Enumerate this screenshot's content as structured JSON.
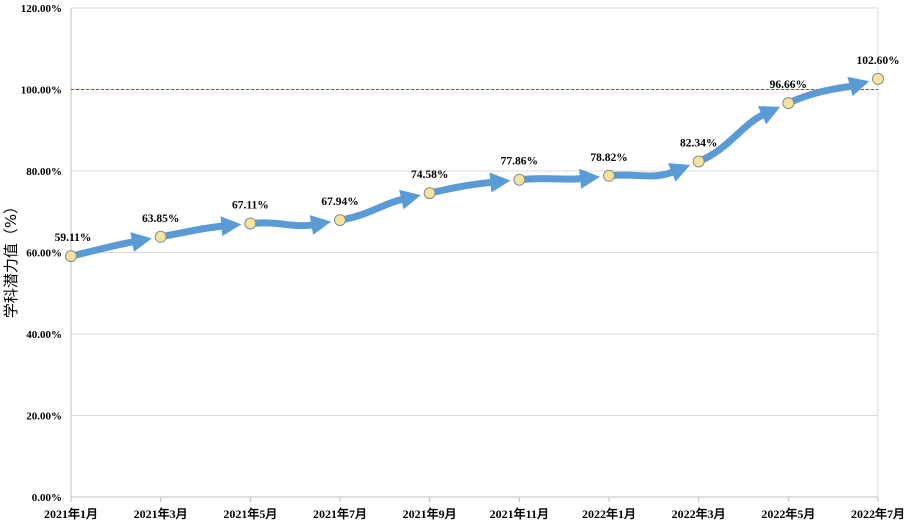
{
  "chart_data": {
    "type": "line",
    "title": "",
    "xlabel": "",
    "ylabel": "学科潜力值（%）",
    "categories": [
      "2021年1月",
      "2021年3月",
      "2021年5月",
      "2021年7月",
      "2021年9月",
      "2021年11月",
      "2022年1月",
      "2022年3月",
      "2022年5月",
      "2022年7月"
    ],
    "series": [
      {
        "values": [
          59.11,
          63.85,
          67.11,
          67.94,
          74.58,
          77.86,
          78.82,
          82.34,
          96.66,
          102.6
        ],
        "labels": [
          "59.11%",
          "63.85%",
          "67.11%",
          "67.94%",
          "74.58%",
          "77.86%",
          "78.82%",
          "82.34%",
          "96.66%",
          "102.60%"
        ]
      }
    ],
    "ylim": [
      0,
      120
    ],
    "yticks": [
      0,
      20,
      40,
      60,
      80,
      100,
      120
    ],
    "ytick_labels": [
      "0.00%",
      "20.00%",
      "40.00%",
      "60.00%",
      "80.00%",
      "100.00%",
      "120.00%"
    ],
    "reference_line": 100,
    "grid": true,
    "legend": "none",
    "colors": {
      "line": "#5b9bd5",
      "marker_fill": "#f3e3a0",
      "marker_stroke": "#8a8a8a",
      "reference": "#d9302c",
      "grid": "#d9d9d9",
      "axis": "#bfbfbf"
    }
  }
}
